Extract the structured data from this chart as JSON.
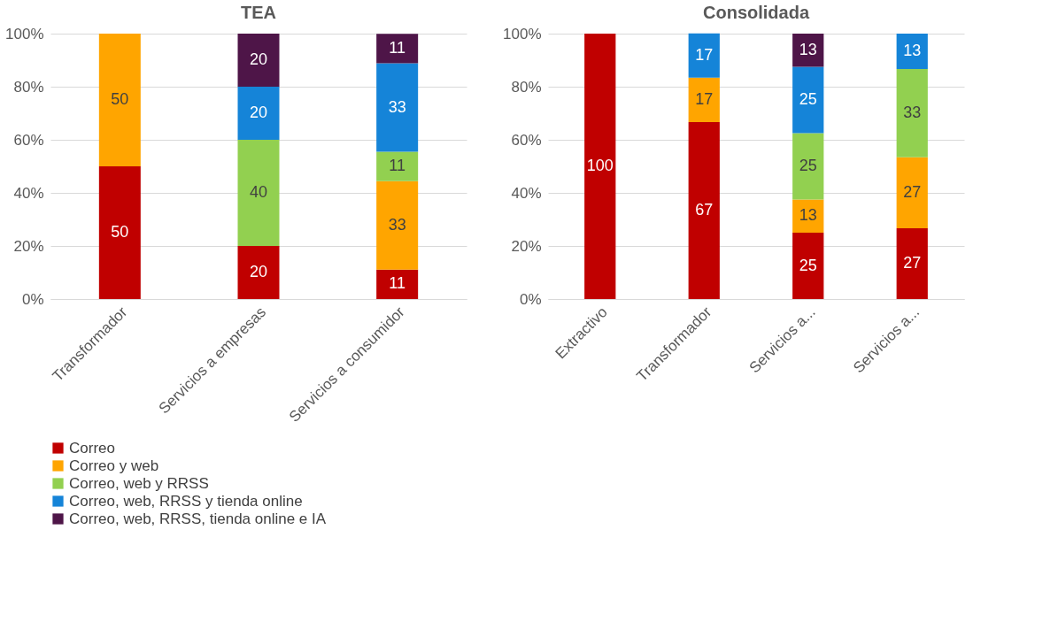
{
  "chart_data": [
    {
      "type": "bar",
      "title": "TEA",
      "stacked": true,
      "grid": "y",
      "legend": "bottom",
      "categories": [
        "Transformador",
        "Servicios a empresas",
        "Servicios a consumidor"
      ],
      "ylim": [
        0,
        100
      ],
      "yticks": [
        {
          "value": 0,
          "label": "0%"
        },
        {
          "value": 20,
          "label": "20%"
        },
        {
          "value": 40,
          "label": "40%"
        },
        {
          "value": 60,
          "label": "60%"
        },
        {
          "value": 80,
          "label": "80%"
        },
        {
          "value": 100,
          "label": "100%"
        }
      ],
      "series": [
        {
          "name": "Correo",
          "color": "#c00000",
          "values": [
            50,
            20,
            11.1
          ],
          "value_labels": [
            "50",
            "20",
            "11"
          ]
        },
        {
          "name": "Correo y web",
          "color": "#ffa500",
          "values": [
            50,
            null,
            33.3
          ],
          "value_labels": [
            "50",
            null,
            "33"
          ]
        },
        {
          "name": "Correo, web y RRSS",
          "color": "#92d050",
          "values": [
            null,
            40,
            11.1
          ],
          "value_labels": [
            null,
            "40",
            "11"
          ]
        },
        {
          "name": "Correo, web, RRSS y tienda online",
          "color": "#1584d8",
          "values": [
            null,
            20,
            33.3
          ],
          "value_labels": [
            null,
            "20",
            "33"
          ]
        },
        {
          "name": "Correo, web, RRSS, tienda online e IA",
          "color": "#4e1548",
          "values": [
            null,
            20,
            11.1
          ],
          "value_labels": [
            null,
            "20",
            "11"
          ]
        }
      ]
    },
    {
      "type": "bar",
      "title": "Consolidada",
      "stacked": true,
      "grid": "y",
      "legend": "bottom",
      "categories": [
        "Extractivo",
        "Transformador",
        "Servicios a...",
        "Servicios a..."
      ],
      "ylim": [
        0,
        100
      ],
      "yticks": [
        {
          "value": 0,
          "label": "0%"
        },
        {
          "value": 20,
          "label": "20%"
        },
        {
          "value": 40,
          "label": "40%"
        },
        {
          "value": 60,
          "label": "60%"
        },
        {
          "value": 80,
          "label": "80%"
        },
        {
          "value": 100,
          "label": "100%"
        }
      ],
      "series": [
        {
          "name": "Correo",
          "color": "#c00000",
          "values": [
            100,
            66.7,
            25,
            26.7
          ],
          "value_labels": [
            "100",
            "67",
            "25",
            "27"
          ]
        },
        {
          "name": "Correo y web",
          "color": "#ffa500",
          "values": [
            null,
            16.7,
            12.5,
            26.7
          ],
          "value_labels": [
            null,
            "17",
            "13",
            "27"
          ]
        },
        {
          "name": "Correo, web y RRSS",
          "color": "#92d050",
          "values": [
            null,
            null,
            25,
            33.3
          ],
          "value_labels": [
            null,
            null,
            "25",
            "33"
          ]
        },
        {
          "name": "Correo, web, RRSS y tienda online",
          "color": "#1584d8",
          "values": [
            null,
            16.7,
            25,
            13.3
          ],
          "value_labels": [
            null,
            "17",
            "25",
            "13"
          ]
        },
        {
          "name": "Correo, web, RRSS, tienda online e IA",
          "color": "#4e1548",
          "values": [
            null,
            null,
            12.5,
            null
          ],
          "value_labels": [
            null,
            null,
            "13",
            null
          ]
        }
      ]
    }
  ]
}
